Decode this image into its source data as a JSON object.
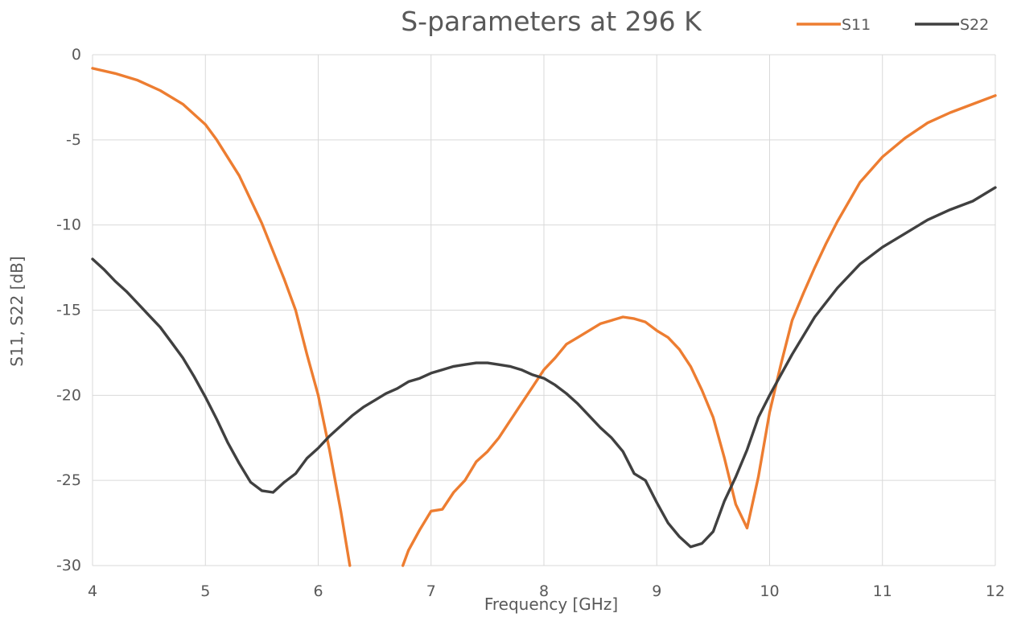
{
  "chart_data": {
    "type": "line",
    "title": "S-parameters at 296 K",
    "xlabel": "Frequency [GHz]",
    "ylabel": "S11, S22 [dB]",
    "xlim": [
      4,
      12
    ],
    "ylim": [
      -30,
      0
    ],
    "x_ticks": [
      "4",
      "5",
      "6",
      "7",
      "8",
      "9",
      "10",
      "11",
      "12"
    ],
    "y_ticks": [
      "0",
      "-5",
      "-10",
      "-15",
      "-20",
      "-25",
      "-30"
    ],
    "grid": true,
    "legend_position": "top-right",
    "series": [
      {
        "name": "S11",
        "color": "#ed7d31",
        "points": [
          [
            4.0,
            -0.8
          ],
          [
            4.2,
            -1.1
          ],
          [
            4.4,
            -1.5
          ],
          [
            4.6,
            -2.1
          ],
          [
            4.8,
            -2.9
          ],
          [
            5.0,
            -4.1
          ],
          [
            5.1,
            -5.0
          ],
          [
            5.3,
            -7.1
          ],
          [
            5.5,
            -9.9
          ],
          [
            5.7,
            -13.2
          ],
          [
            5.8,
            -15.0
          ],
          [
            5.9,
            -17.6
          ],
          [
            6.0,
            -20.0
          ],
          [
            6.1,
            -23.2
          ],
          [
            6.2,
            -26.8
          ],
          [
            6.28,
            -30.0
          ],
          null,
          [
            6.75,
            -30.0
          ],
          [
            6.8,
            -29.1
          ],
          [
            6.9,
            -27.9
          ],
          [
            7.0,
            -26.8
          ],
          [
            7.1,
            -26.7
          ],
          [
            7.2,
            -25.7
          ],
          [
            7.3,
            -25.0
          ],
          [
            7.4,
            -23.9
          ],
          [
            7.5,
            -23.3
          ],
          [
            7.6,
            -22.5
          ],
          [
            7.7,
            -21.5
          ],
          [
            7.8,
            -20.5
          ],
          [
            7.9,
            -19.5
          ],
          [
            8.0,
            -18.5
          ],
          [
            8.1,
            -17.8
          ],
          [
            8.2,
            -17.0
          ],
          [
            8.3,
            -16.6
          ],
          [
            8.4,
            -16.2
          ],
          [
            8.5,
            -15.8
          ],
          [
            8.6,
            -15.6
          ],
          [
            8.7,
            -15.4
          ],
          [
            8.8,
            -15.5
          ],
          [
            8.9,
            -15.7
          ],
          [
            9.0,
            -16.2
          ],
          [
            9.1,
            -16.6
          ],
          [
            9.2,
            -17.3
          ],
          [
            9.3,
            -18.3
          ],
          [
            9.4,
            -19.7
          ],
          [
            9.5,
            -21.3
          ],
          [
            9.6,
            -23.7
          ],
          [
            9.7,
            -26.4
          ],
          [
            9.8,
            -27.8
          ],
          [
            9.9,
            -24.8
          ],
          [
            10.0,
            -21.0
          ],
          [
            10.1,
            -18.2
          ],
          [
            10.2,
            -15.6
          ],
          [
            10.3,
            -14.0
          ],
          [
            10.4,
            -12.5
          ],
          [
            10.5,
            -11.1
          ],
          [
            10.6,
            -9.8
          ],
          [
            10.8,
            -7.5
          ],
          [
            11.0,
            -6.0
          ],
          [
            11.2,
            -4.9
          ],
          [
            11.4,
            -4.0
          ],
          [
            11.6,
            -3.4
          ],
          [
            11.8,
            -2.9
          ],
          [
            12.0,
            -2.4
          ]
        ]
      },
      {
        "name": "S22",
        "color": "#404040",
        "points": [
          [
            4.0,
            -12.0
          ],
          [
            4.1,
            -12.6
          ],
          [
            4.2,
            -13.3
          ],
          [
            4.3,
            -13.9
          ],
          [
            4.4,
            -14.6
          ],
          [
            4.5,
            -15.3
          ],
          [
            4.6,
            -16.0
          ],
          [
            4.7,
            -16.9
          ],
          [
            4.8,
            -17.8
          ],
          [
            4.9,
            -18.9
          ],
          [
            5.0,
            -20.1
          ],
          [
            5.1,
            -21.4
          ],
          [
            5.2,
            -22.8
          ],
          [
            5.3,
            -24.0
          ],
          [
            5.4,
            -25.1
          ],
          [
            5.5,
            -25.6
          ],
          [
            5.6,
            -25.7
          ],
          [
            5.7,
            -25.1
          ],
          [
            5.8,
            -24.6
          ],
          [
            5.9,
            -23.7
          ],
          [
            6.0,
            -23.1
          ],
          [
            6.1,
            -22.4
          ],
          [
            6.2,
            -21.8
          ],
          [
            6.3,
            -21.2
          ],
          [
            6.4,
            -20.7
          ],
          [
            6.5,
            -20.3
          ],
          [
            6.6,
            -19.9
          ],
          [
            6.7,
            -19.6
          ],
          [
            6.8,
            -19.2
          ],
          [
            6.9,
            -19.0
          ],
          [
            7.0,
            -18.7
          ],
          [
            7.1,
            -18.5
          ],
          [
            7.2,
            -18.3
          ],
          [
            7.3,
            -18.2
          ],
          [
            7.4,
            -18.1
          ],
          [
            7.5,
            -18.1
          ],
          [
            7.6,
            -18.2
          ],
          [
            7.7,
            -18.3
          ],
          [
            7.8,
            -18.5
          ],
          [
            7.9,
            -18.8
          ],
          [
            8.0,
            -19.0
          ],
          [
            8.1,
            -19.4
          ],
          [
            8.2,
            -19.9
          ],
          [
            8.3,
            -20.5
          ],
          [
            8.4,
            -21.2
          ],
          [
            8.5,
            -21.9
          ],
          [
            8.6,
            -22.5
          ],
          [
            8.7,
            -23.3
          ],
          [
            8.8,
            -24.6
          ],
          [
            8.9,
            -25.0
          ],
          [
            9.0,
            -26.3
          ],
          [
            9.1,
            -27.5
          ],
          [
            9.2,
            -28.3
          ],
          [
            9.3,
            -28.9
          ],
          [
            9.4,
            -28.7
          ],
          [
            9.5,
            -28.0
          ],
          [
            9.6,
            -26.2
          ],
          [
            9.7,
            -24.8
          ],
          [
            9.8,
            -23.2
          ],
          [
            9.9,
            -21.3
          ],
          [
            10.0,
            -20.0
          ],
          [
            10.2,
            -17.6
          ],
          [
            10.4,
            -15.4
          ],
          [
            10.6,
            -13.7
          ],
          [
            10.8,
            -12.3
          ],
          [
            11.0,
            -11.3
          ],
          [
            11.2,
            -10.5
          ],
          [
            11.4,
            -9.7
          ],
          [
            11.6,
            -9.1
          ],
          [
            11.8,
            -8.6
          ],
          [
            12.0,
            -7.8
          ]
        ]
      }
    ]
  }
}
